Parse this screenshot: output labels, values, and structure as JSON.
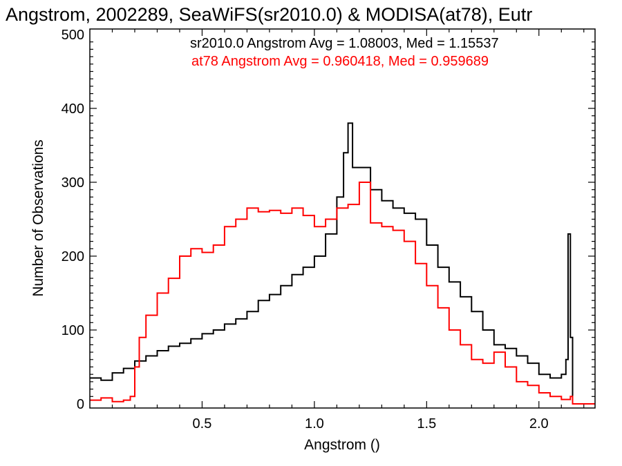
{
  "chart_data": {
    "type": "line",
    "title": "Angstrom, 2002289, SeaWiFS(sr2010.0) & MODISA(at78), Eutr",
    "xlabel": "Angstrom ()",
    "ylabel": "Number of Observations",
    "xlim": [
      0.0,
      2.25
    ],
    "ylim": [
      0,
      500
    ],
    "xticks": [
      "0.5",
      "1.0",
      "1.5",
      "2.0"
    ],
    "yticks": [
      "0",
      "100",
      "200",
      "300",
      "400",
      "500"
    ],
    "grid": false,
    "step": true,
    "annotations": [
      {
        "text": "sr2010.0 Angstrom Avg = 1.08003, Med = 1.15537",
        "color": "#000000"
      },
      {
        "text": "at78 Angstrom Avg = 0.960418, Med = 0.959689",
        "color": "#ff0000"
      }
    ],
    "series": [
      {
        "color": "#000000",
        "x": [
          0.0,
          0.05,
          0.1,
          0.15,
          0.2,
          0.25,
          0.3,
          0.35,
          0.4,
          0.45,
          0.5,
          0.55,
          0.6,
          0.65,
          0.7,
          0.75,
          0.8,
          0.85,
          0.9,
          0.95,
          1.0,
          1.05,
          1.1,
          1.13,
          1.15,
          1.17,
          1.2,
          1.25,
          1.3,
          1.35,
          1.4,
          1.45,
          1.5,
          1.55,
          1.6,
          1.65,
          1.7,
          1.75,
          1.8,
          1.85,
          1.9,
          1.95,
          2.0,
          2.05,
          2.1,
          2.12,
          2.13,
          2.14,
          2.15,
          2.2,
          2.25
        ],
        "values": [
          35,
          32,
          42,
          48,
          58,
          65,
          72,
          78,
          82,
          88,
          95,
          100,
          108,
          115,
          125,
          140,
          148,
          160,
          175,
          185,
          200,
          230,
          280,
          340,
          380,
          320,
          320,
          290,
          275,
          265,
          258,
          250,
          215,
          185,
          165,
          145,
          125,
          100,
          80,
          75,
          65,
          55,
          40,
          35,
          40,
          60,
          230,
          90,
          0,
          0,
          0
        ]
      },
      {
        "color": "#ff0000",
        "x": [
          0.0,
          0.05,
          0.1,
          0.15,
          0.18,
          0.2,
          0.22,
          0.25,
          0.3,
          0.35,
          0.4,
          0.45,
          0.5,
          0.55,
          0.6,
          0.65,
          0.7,
          0.75,
          0.8,
          0.85,
          0.9,
          0.95,
          1.0,
          1.05,
          1.1,
          1.15,
          1.2,
          1.25,
          1.3,
          1.35,
          1.4,
          1.45,
          1.5,
          1.55,
          1.6,
          1.65,
          1.7,
          1.75,
          1.8,
          1.85,
          1.9,
          1.95,
          2.0,
          2.05,
          2.1,
          2.14,
          2.15,
          2.2,
          2.25
        ],
        "values": [
          5,
          8,
          3,
          5,
          10,
          50,
          90,
          120,
          150,
          170,
          200,
          210,
          205,
          215,
          240,
          250,
          265,
          260,
          262,
          258,
          265,
          255,
          240,
          250,
          265,
          270,
          300,
          245,
          240,
          235,
          220,
          190,
          160,
          130,
          100,
          80,
          60,
          55,
          70,
          50,
          30,
          25,
          15,
          10,
          6,
          10,
          0,
          0,
          0
        ]
      }
    ]
  }
}
